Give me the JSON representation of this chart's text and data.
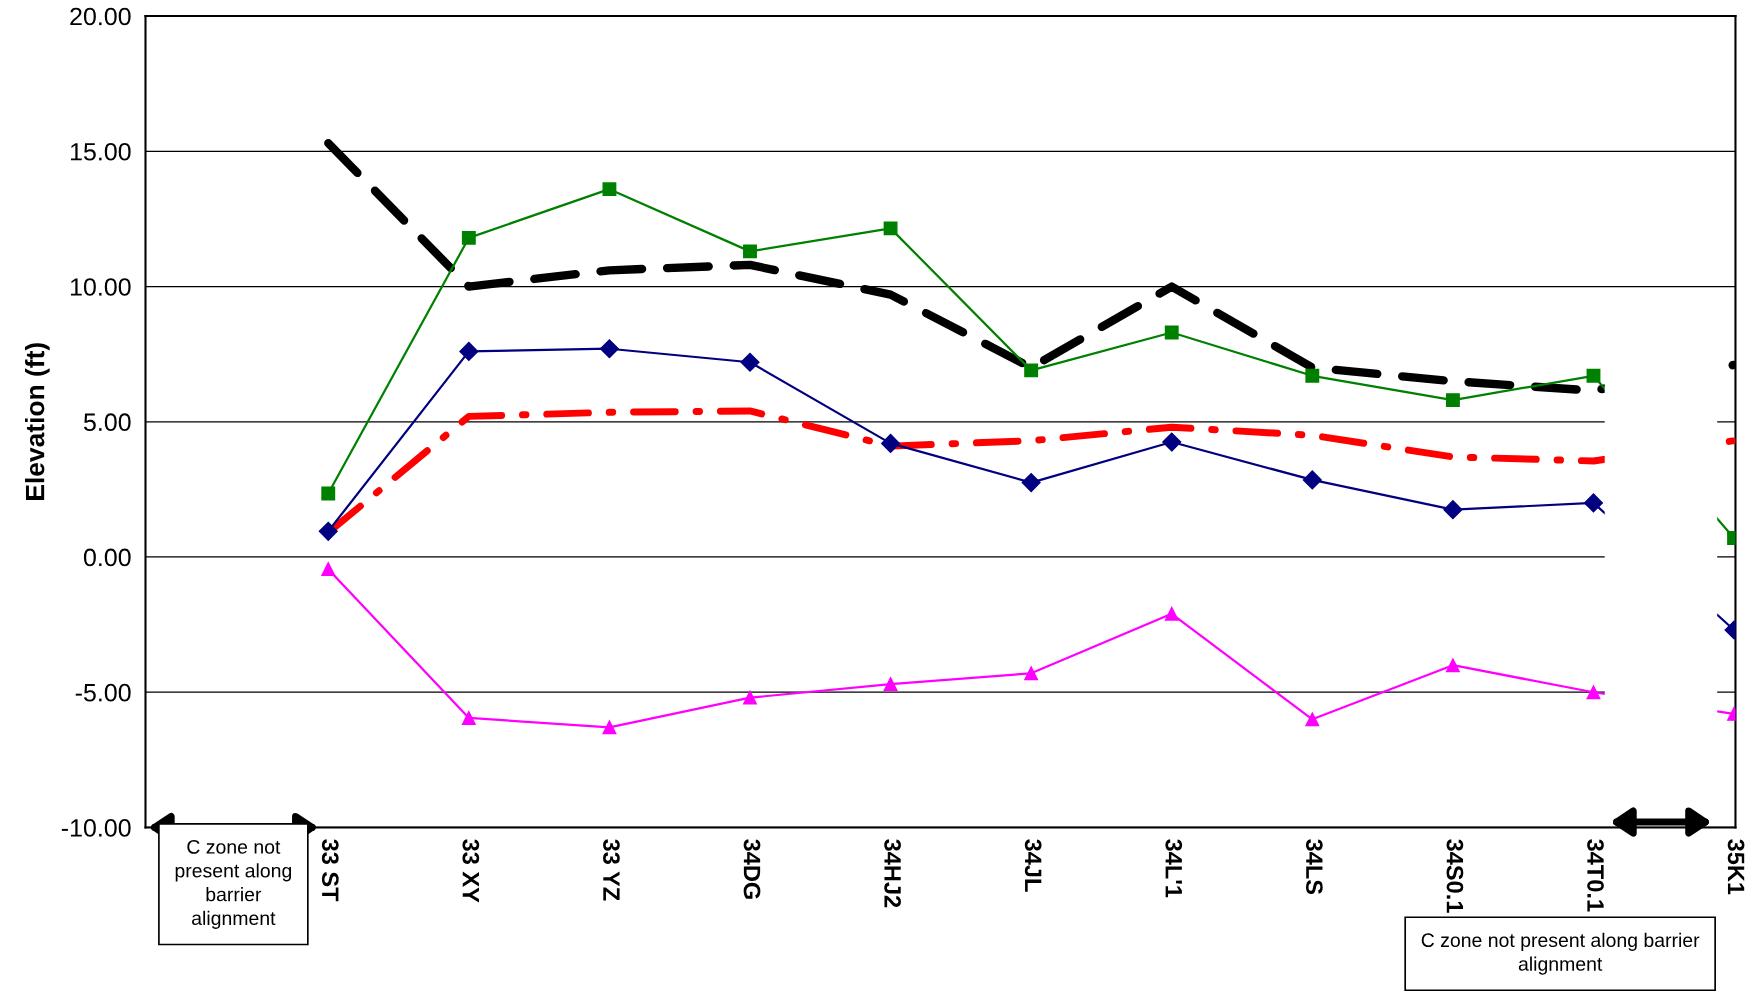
{
  "chart_data": {
    "type": "line",
    "ylabel": "Elevation (ft)",
    "categories": [
      "33 ST",
      "33 XY",
      "33 YZ",
      "34DG",
      "34HJ2",
      "34JL",
      "34L'1",
      "34LS",
      "34S0.1",
      "34T0.1",
      "35K1"
    ],
    "ylim": [
      -10,
      20
    ],
    "yticks": [
      {
        "value": -10,
        "label": "-10.00"
      },
      {
        "value": -5,
        "label": "-5.00"
      },
      {
        "value": 0,
        "label": "0.00"
      },
      {
        "value": 5,
        "label": "5.00"
      },
      {
        "value": 10,
        "label": "10.00"
      },
      {
        "value": 15,
        "label": "15.00"
      },
      {
        "value": 20,
        "label": "20.00"
      }
    ],
    "grid": "y",
    "series": [
      {
        "color": "#000000",
        "line_style": "dashed",
        "marker": "none",
        "values": [
          15.3,
          10.0,
          10.6,
          10.8,
          9.7,
          7.0,
          10.0,
          7.0,
          6.5,
          6.15,
          7.1
        ]
      },
      {
        "color": "#ff0000",
        "line_style": "dashdot",
        "marker": "none",
        "values": [
          0.9,
          5.2,
          5.35,
          5.4,
          4.1,
          4.3,
          4.8,
          4.5,
          3.7,
          3.55,
          4.3
        ]
      },
      {
        "color": "#008000",
        "line_style": "solid",
        "marker": "square",
        "values": [
          2.35,
          11.8,
          13.6,
          11.3,
          12.15,
          6.9,
          8.3,
          6.7,
          5.8,
          6.7,
          0.7
        ]
      },
      {
        "color": "#000080",
        "line_style": "solid",
        "marker": "diamond",
        "values": [
          0.95,
          7.6,
          7.7,
          7.2,
          4.2,
          2.75,
          4.25,
          2.85,
          1.75,
          2.0,
          -2.7
        ]
      },
      {
        "color": "#ff00ff",
        "line_style": "solid",
        "marker": "triangle",
        "values": [
          -0.45,
          -5.95,
          -6.3,
          -5.2,
          -4.7,
          -4.3,
          -2.1,
          -6.0,
          -4.0,
          -5.0,
          -5.8
        ]
      }
    ],
    "annotations": [
      "C zone not present along barrier alignment",
      "C zone not present along barrier alignment"
    ]
  }
}
